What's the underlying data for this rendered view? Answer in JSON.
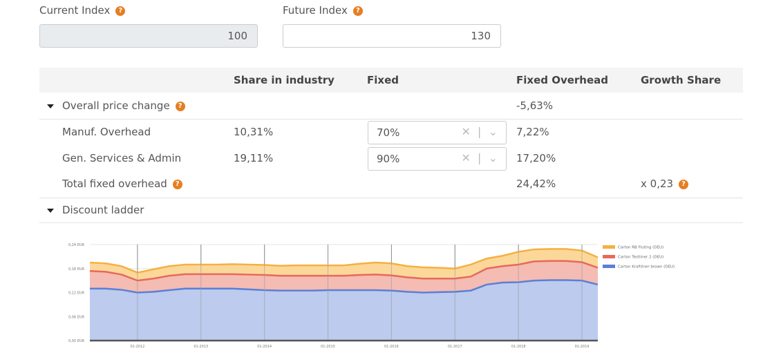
{
  "form": {
    "current_index": {
      "label": "Current Index",
      "value": "100"
    },
    "future_index": {
      "label": "Future Index",
      "value": "130"
    }
  },
  "table": {
    "headers": [
      "Share in industry",
      "Fixed",
      "Fixed Overhead",
      "Growth Share"
    ],
    "sections": [
      {
        "title": "Overall price change",
        "value": "-5,63%",
        "rows": [
          {
            "name": "Manuf. Overhead",
            "share": "10,31%",
            "fixed": "70%",
            "fixed_overhead": "7,22%"
          },
          {
            "name": "Gen. Services & Admin",
            "share": "19,11%",
            "fixed": "90%",
            "fixed_overhead": "17,20%"
          }
        ],
        "total": {
          "name": "Total fixed overhead",
          "fixed_overhead": "24,42%",
          "growth_share": "x 0,23"
        }
      },
      {
        "title": "Discount ladder"
      }
    ]
  },
  "chart_data": {
    "type": "area",
    "x": [
      "04-2011",
      "07-2011",
      "10-2011",
      "01-2012",
      "04-2012",
      "07-2012",
      "10-2012",
      "01-2013",
      "04-2013",
      "07-2013",
      "10-2013",
      "01-2014",
      "04-2014",
      "07-2014",
      "10-2014",
      "01-2015",
      "04-2015",
      "07-2015",
      "10-2015",
      "01-2016",
      "04-2016",
      "07-2016",
      "10-2016",
      "01-2017",
      "04-2017",
      "07-2017",
      "10-2017",
      "01-2018",
      "04-2018",
      "07-2018",
      "10-2018",
      "01-2019",
      "04-2019"
    ],
    "series": [
      {
        "name": "Carton RB Fluting (DEU)",
        "color": "#f5b041",
        "fill": "#fbd89a",
        "values": [
          0.195,
          0.193,
          0.186,
          0.17,
          0.178,
          0.186,
          0.19,
          0.19,
          0.19,
          0.191,
          0.19,
          0.189,
          0.187,
          0.188,
          0.188,
          0.188,
          0.188,
          0.192,
          0.195,
          0.193,
          0.186,
          0.183,
          0.182,
          0.18,
          0.19,
          0.205,
          0.212,
          0.222,
          0.228,
          0.229,
          0.229,
          0.225,
          0.208
        ]
      },
      {
        "name": "Carton Testliner 2 (DEU)",
        "color": "#e8685a",
        "fill": "#f4bcb2",
        "values": [
          0.174,
          0.172,
          0.165,
          0.15,
          0.155,
          0.162,
          0.166,
          0.166,
          0.166,
          0.166,
          0.165,
          0.164,
          0.162,
          0.162,
          0.162,
          0.162,
          0.162,
          0.164,
          0.165,
          0.163,
          0.158,
          0.155,
          0.155,
          0.155,
          0.16,
          0.18,
          0.186,
          0.19,
          0.198,
          0.199,
          0.199,
          0.196,
          0.182
        ]
      },
      {
        "name": "Carton Kraftliner brown (DEU)",
        "color": "#5b7fd6",
        "fill": "#bccbee",
        "values": [
          0.13,
          0.13,
          0.127,
          0.12,
          0.122,
          0.126,
          0.13,
          0.13,
          0.13,
          0.13,
          0.128,
          0.126,
          0.125,
          0.125,
          0.125,
          0.126,
          0.126,
          0.126,
          0.126,
          0.125,
          0.122,
          0.12,
          0.121,
          0.122,
          0.125,
          0.14,
          0.145,
          0.146,
          0.15,
          0.151,
          0.151,
          0.15,
          0.14
        ]
      }
    ],
    "ylim": [
      0,
      0.24
    ],
    "yticks": [
      {
        "value": 0,
        "label": "0,00 EUR"
      },
      {
        "value": 0.06,
        "label": "0,06 EUR"
      },
      {
        "value": 0.12,
        "label": "0,12 EUR"
      },
      {
        "value": 0.18,
        "label": "0,18 EUR"
      },
      {
        "value": 0.24,
        "label": "0,24 EUR"
      }
    ],
    "xticks": [
      "01-2012",
      "01-2013",
      "01-2014",
      "01-2015",
      "01-2016",
      "01-2017",
      "01-2018",
      "01-2019"
    ],
    "grid": true,
    "legend": "right"
  }
}
